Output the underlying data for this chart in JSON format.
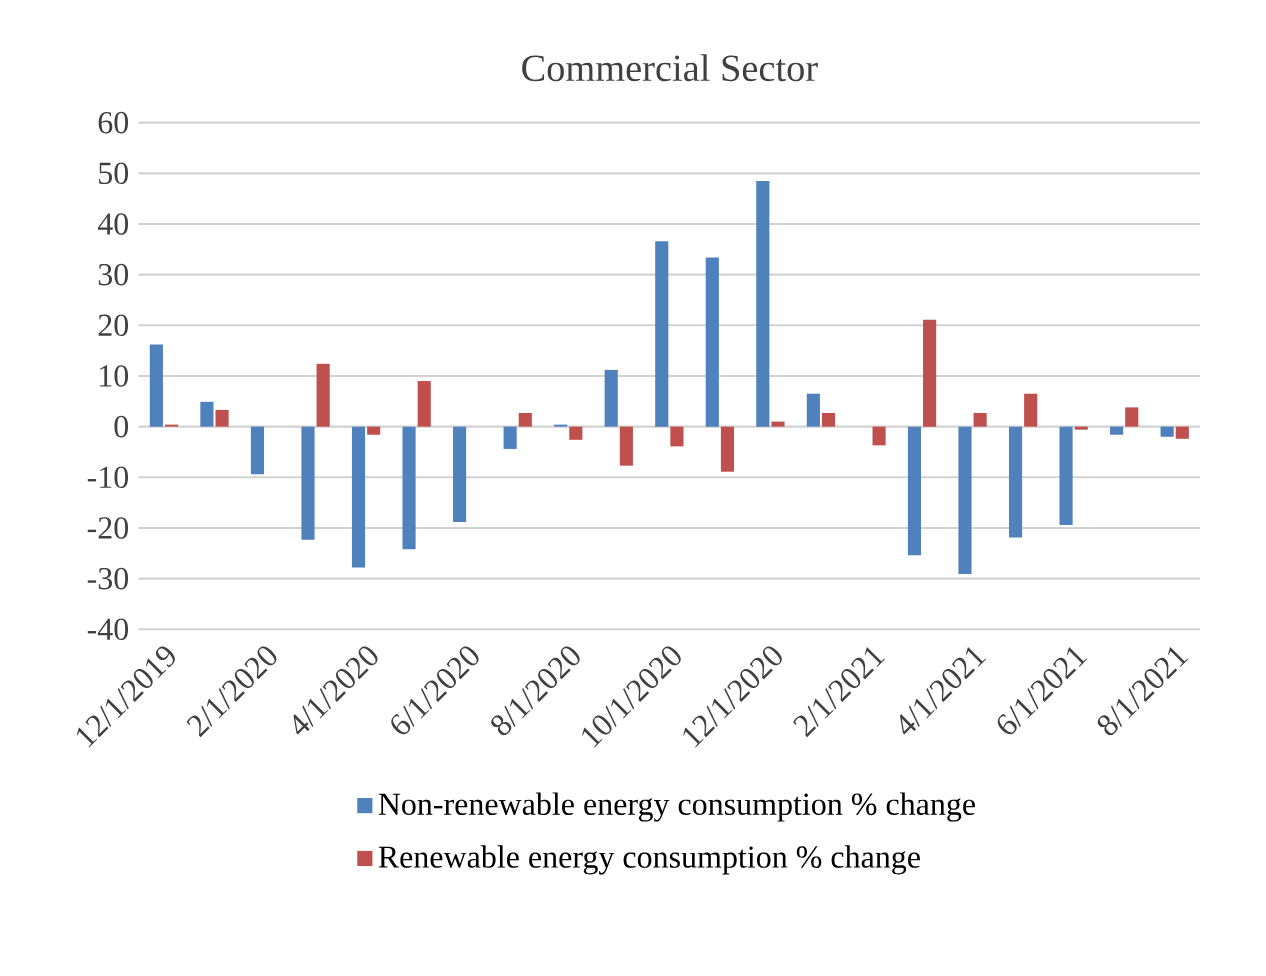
{
  "chart_data": {
    "type": "bar",
    "title": "Commercial Sector",
    "categories": [
      "12/1/2019",
      null,
      "2/1/2020",
      null,
      "4/1/2020",
      null,
      "6/1/2020",
      null,
      "8/1/2020",
      null,
      "10/1/2020",
      null,
      "12/1/2020",
      null,
      "2/1/2021",
      null,
      "4/1/2021",
      null,
      "6/1/2021",
      null,
      "8/1/2021"
    ],
    "series": [
      {
        "name": "Non-renewable energy consumption % change",
        "color": "#4f81bd",
        "values": [
          16.2,
          4.9,
          -9.4,
          -22.3,
          -27.8,
          -24.2,
          -18.8,
          -4.4,
          0.4,
          11.2,
          36.6,
          33.4,
          48.5,
          6.5,
          0,
          -25.4,
          -29.1,
          -21.9,
          -19.4,
          -1.6,
          -2.0
        ]
      },
      {
        "name": "Renewable energy consumption % change",
        "color": "#c0504d",
        "values": [
          0.4,
          3.3,
          0,
          12.4,
          -1.6,
          9.0,
          0,
          2.7,
          -2.6,
          -7.7,
          -3.9,
          -8.9,
          1.0,
          2.7,
          -3.7,
          21.1,
          2.7,
          6.5,
          -0.6,
          3.8,
          -2.4
        ]
      }
    ],
    "ylim": [
      -40,
      60
    ],
    "yticks": [
      -40,
      -30,
      -20,
      -10,
      0,
      10,
      20,
      30,
      40,
      50,
      60
    ],
    "grid": "y",
    "legend": "bottom"
  }
}
